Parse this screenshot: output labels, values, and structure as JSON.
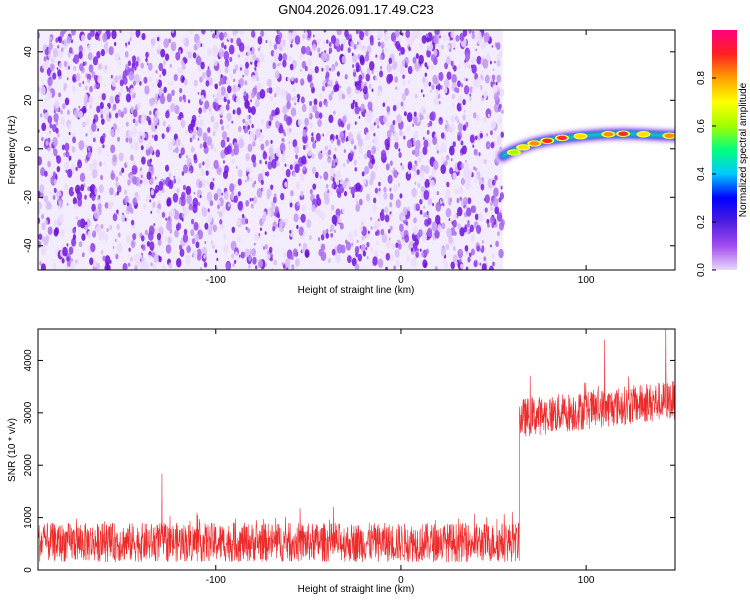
{
  "title": "GN04.2026.091.17.49.C23",
  "colors": {
    "cloud": "#7a1fe6",
    "snr_trace": "#ee2b2b",
    "colorbar_stops": [
      "#e8d8f8",
      "#a44df0",
      "#4b1ee0",
      "#0000ff",
      "#00c8ff",
      "#00ff80",
      "#a0ff00",
      "#ffff00",
      "#ffa000",
      "#ff2020",
      "#ff0080"
    ]
  },
  "chart_data": [
    {
      "type": "heatmap",
      "title": "GN04.2026.091.17.49.C23",
      "xlabel": "Height of straight line (km)",
      "ylabel": "Frequency (Hz)",
      "xlim": [
        -196,
        148
      ],
      "ylim": [
        -50,
        49
      ],
      "xticks": [
        -100,
        0,
        100
      ],
      "xtick_labels": [
        "-100",
        "0",
        "100"
      ],
      "yticks": [
        -40,
        -20,
        0,
        20,
        40
      ],
      "ytick_labels": [
        "-40",
        "-20",
        "0",
        "20",
        "40"
      ],
      "noise_region_km": [
        -196,
        55
      ],
      "signal_track": {
        "x": [
          55,
          60,
          65,
          70,
          75,
          80,
          90,
          100,
          110,
          120,
          130,
          140,
          148
        ],
        "y": [
          -3,
          -1,
          0.5,
          1.8,
          2.8,
          3.6,
          4.6,
          5.4,
          6.0,
          6.2,
          6.0,
          5.6,
          5.3
        ],
        "peaks": [
          {
            "x": 61,
            "y": -1.5,
            "amp": 0.5
          },
          {
            "x": 66,
            "y": 0.6,
            "amp": 0.65
          },
          {
            "x": 72,
            "y": 2.2,
            "amp": 0.75
          },
          {
            "x": 79,
            "y": 3.3,
            "amp": 0.85
          },
          {
            "x": 87,
            "y": 4.5,
            "amp": 0.85
          },
          {
            "x": 97,
            "y": 5.2,
            "amp": 0.55
          },
          {
            "x": 112,
            "y": 6.0,
            "amp": 0.75
          },
          {
            "x": 120,
            "y": 6.2,
            "amp": 0.9
          },
          {
            "x": 131,
            "y": 6.0,
            "amp": 0.6
          },
          {
            "x": 145,
            "y": 5.4,
            "amp": 0.8
          }
        ]
      },
      "colorbar": {
        "label": "Normalized spectral amplitude",
        "range": [
          0,
          1
        ],
        "ticks": [
          0.0,
          0.2,
          0.4,
          0.6,
          0.8
        ],
        "tick_labels": [
          "0.0",
          "0.2",
          "0.4",
          "0.6",
          "0.8"
        ]
      }
    },
    {
      "type": "line",
      "xlabel": "Height of straight line (km)",
      "ylabel": "SNR (10 * v/v)",
      "xlim": [
        -196,
        148
      ],
      "ylim": [
        0,
        4600
      ],
      "xticks": [
        -100,
        0,
        100
      ],
      "xtick_labels": [
        "-100",
        "0",
        "100"
      ],
      "yticks": [
        0,
        1000,
        2000,
        3000,
        4000
      ],
      "ytick_labels": [
        "0",
        "1000",
        "2000",
        "3000",
        "4000"
      ],
      "series": [
        {
          "name": "SNR",
          "segments": [
            {
              "x_range": [
                -196,
                64
              ],
              "mean": 500,
              "band": [
                150,
                900
              ]
            },
            {
              "x_range": [
                64,
                148
              ],
              "mean_start": 2900,
              "mean_end": 3250,
              "band": 750
            }
          ],
          "step_x": 64,
          "spikes": [
            {
              "x": -129,
              "y": 1840
            },
            {
              "x": -196,
              "y": 1200
            },
            {
              "x": 110,
              "y": 4400
            },
            {
              "x": 143,
              "y": 4620
            }
          ]
        }
      ]
    }
  ]
}
